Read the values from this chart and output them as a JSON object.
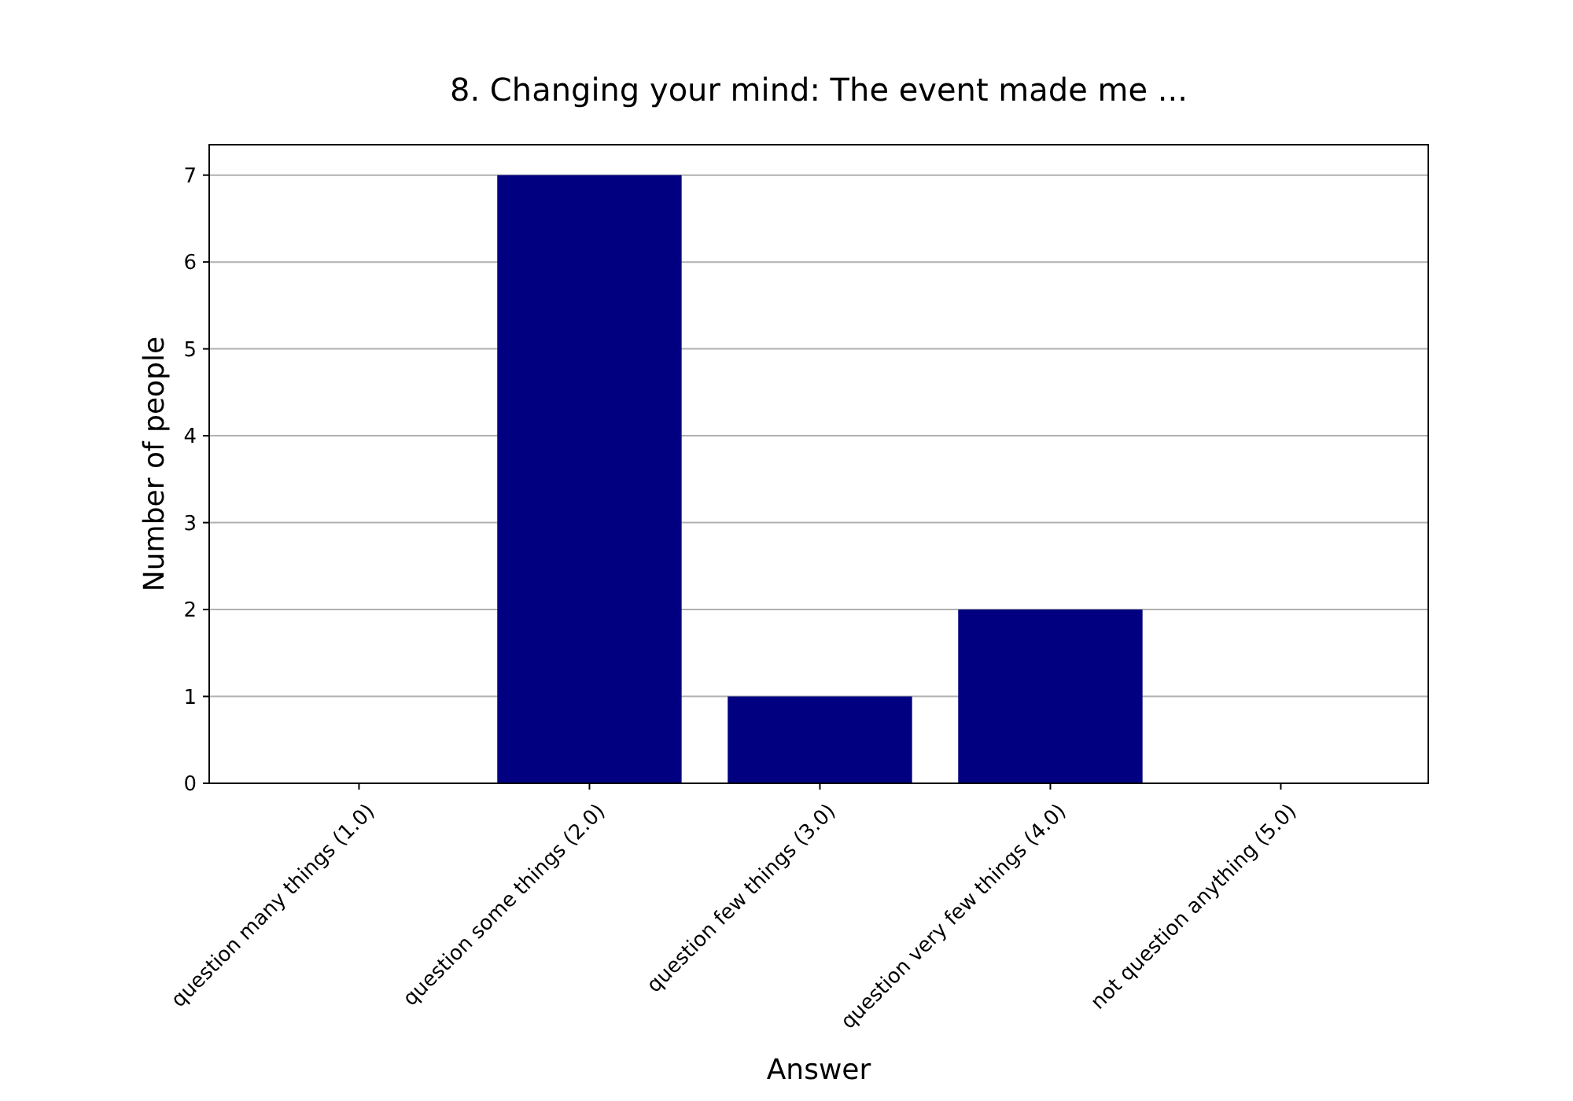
{
  "chart_data": {
    "type": "bar",
    "title": "8. Changing your mind: The event made me ...",
    "xlabel": "Answer",
    "ylabel": "Number of people",
    "categories": [
      "question many things (1.0)",
      "question some things (2.0)",
      "question few things (3.0)",
      "question very few things (4.0)",
      "not question anything (5.0)"
    ],
    "values": [
      0,
      7,
      1,
      2,
      0
    ],
    "color": "#000080",
    "ylim": [
      0,
      7.35
    ],
    "yticks": [
      0,
      1,
      2,
      3,
      4,
      5,
      6,
      7
    ],
    "grid": "y"
  }
}
